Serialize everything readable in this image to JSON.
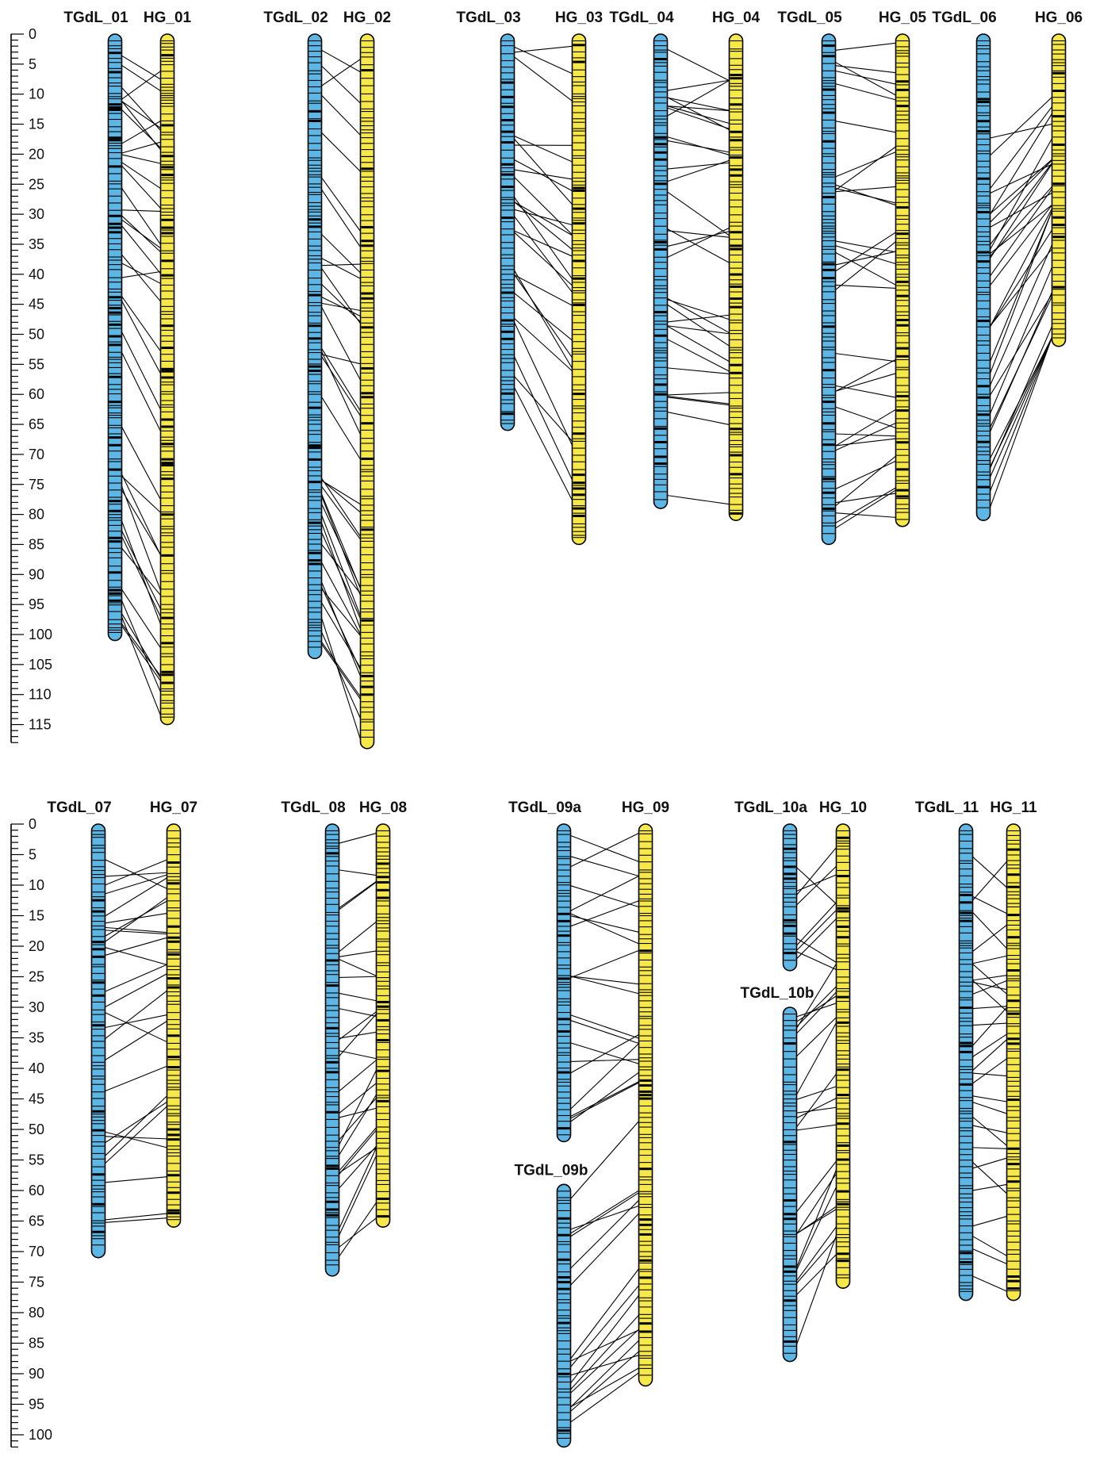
{
  "colors": {
    "group_a_fill": "#5eb6e4",
    "group_b_fill": "#f7e84a",
    "outline": "#000000",
    "marker": "#000000"
  },
  "panels": [
    {
      "axis_ticks": [
        "0",
        "5",
        "10",
        "15",
        "20",
        "25",
        "30",
        "35",
        "40",
        "45",
        "50",
        "55",
        "60",
        "65",
        "70",
        "75",
        "80",
        "85",
        "90",
        "95",
        "100",
        "105",
        "110",
        "115"
      ],
      "axis_max": 118,
      "pairs": [
        {
          "a": [
            {
              "name": "TGdL_01",
              "start": 0,
              "end": 101
            }
          ],
          "b": {
            "name": "HG_01",
            "length": 115
          }
        },
        {
          "a": [
            {
              "name": "TGdL_02",
              "start": 0,
              "end": 104
            }
          ],
          "b": {
            "name": "HG_02",
            "length": 119
          }
        },
        {
          "a": [
            {
              "name": "TGdL_03",
              "start": 0,
              "end": 66
            }
          ],
          "b": {
            "name": "HG_03",
            "length": 85
          }
        },
        {
          "a": [
            {
              "name": "TGdL_04",
              "start": 0,
              "end": 79
            }
          ],
          "b": {
            "name": "HG_04",
            "length": 81
          }
        },
        {
          "a": [
            {
              "name": "TGdL_05",
              "start": 0,
              "end": 85
            }
          ],
          "b": {
            "name": "HG_05",
            "length": 82
          }
        },
        {
          "a": [
            {
              "name": "TGdL_06",
              "start": 0,
              "end": 81
            }
          ],
          "b": {
            "name": "HG_06",
            "length": 52
          }
        }
      ]
    },
    {
      "axis_ticks": [
        "0",
        "5",
        "10",
        "15",
        "20",
        "25",
        "30",
        "35",
        "40",
        "45",
        "50",
        "55",
        "60",
        "65",
        "70",
        "75",
        "80",
        "85",
        "90",
        "95",
        "100"
      ],
      "axis_max": 102,
      "pairs": [
        {
          "a": [
            {
              "name": "TGdL_07",
              "start": 0,
              "end": 71
            }
          ],
          "b": {
            "name": "HG_07",
            "length": 66
          }
        },
        {
          "a": [
            {
              "name": "TGdL_08",
              "start": 0,
              "end": 74
            }
          ],
          "b": {
            "name": "HG_08",
            "length": 66
          }
        },
        {
          "a": [
            {
              "name": "TGdL_09a",
              "start": 0,
              "end": 52
            },
            {
              "name": "TGdL_09b",
              "start": 59,
              "end": 102
            }
          ],
          "b": {
            "name": "HG_09",
            "length": 92
          }
        },
        {
          "a": [
            {
              "name": "TGdL_10a",
              "start": 0,
              "end": 24
            },
            {
              "name": "TGdL_10b",
              "start": 30,
              "end": 88
            }
          ],
          "b": {
            "name": "HG_10",
            "length": 76
          }
        },
        {
          "a": [
            {
              "name": "TGdL_11",
              "start": 0,
              "end": 78
            }
          ],
          "b": {
            "name": "HG_11",
            "length": 78
          }
        }
      ]
    }
  ]
}
